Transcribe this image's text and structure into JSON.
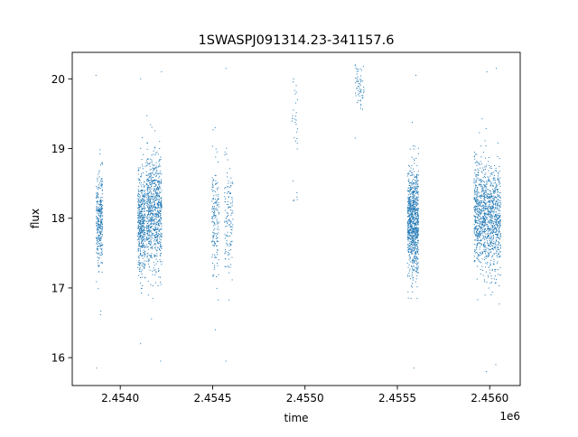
{
  "chart_data": {
    "type": "scatter",
    "title": "1SWASPJ091314.23-341157.6",
    "xlabel": "time",
    "ylabel": "flux",
    "x_offset_label": "1e6",
    "x_ticks": [
      "2.4540",
      "2.4545",
      "2.4550",
      "2.4555",
      "2.4560"
    ],
    "x_tick_values": [
      2454000,
      2454500,
      2455000,
      2455500,
      2456000
    ],
    "y_ticks": [
      "16",
      "17",
      "18",
      "19",
      "20"
    ],
    "y_tick_values": [
      16,
      17,
      18,
      19,
      20
    ],
    "xlim": [
      2453740,
      2456165
    ],
    "ylim": [
      15.6,
      20.38
    ],
    "grid": false,
    "legend": "none",
    "marker_color": "#1f77b4",
    "series": [
      {
        "clusters": [
          {
            "x_range": [
              2453870,
              2453905
            ],
            "center": 18.0,
            "spread": 0.33,
            "points": 320,
            "outlier_low": 15.85,
            "outlier_high": 20.05
          },
          {
            "x_range": [
              2454095,
              2454135
            ],
            "center": 17.95,
            "spread": 0.38,
            "points": 450,
            "outlier_low": 16.2,
            "outlier_high": 20.0
          },
          {
            "x_range": [
              2454140,
              2454225
            ],
            "center": 18.1,
            "spread": 0.4,
            "points": 800,
            "outlier_low": 15.95,
            "outlier_high": 20.1
          },
          {
            "x_range": [
              2454495,
              2454535
            ],
            "center": 18.05,
            "spread": 0.38,
            "points": 160,
            "outlier_low": 16.4,
            "outlier_high": 19.3
          },
          {
            "x_range": [
              2454565,
              2454610
            ],
            "center": 17.95,
            "spread": 0.42,
            "points": 130,
            "outlier_low": 15.95,
            "outlier_high": 20.15
          },
          {
            "x_range": [
              2454930,
              2454960
            ],
            "center": 19.2,
            "spread": 0.4,
            "points": 30,
            "outlier_low": 18.25,
            "outlier_high": 20.0
          },
          {
            "x_range": [
              2455270,
              2455320
            ],
            "center": 19.9,
            "spread": 0.16,
            "points": 60,
            "outlier_low": 19.15,
            "outlier_high": 20.2
          },
          {
            "x_range": [
              2455555,
              2455615
            ],
            "center": 17.95,
            "spread": 0.38,
            "points": 900,
            "outlier_low": 15.85,
            "outlier_high": 20.05
          },
          {
            "x_range": [
              2455915,
              2455985
            ],
            "center": 18.05,
            "spread": 0.38,
            "points": 600,
            "outlier_low": 15.8,
            "outlier_high": 20.1
          },
          {
            "x_range": [
              2455985,
              2456060
            ],
            "center": 17.95,
            "spread": 0.38,
            "points": 600,
            "outlier_low": 15.9,
            "outlier_high": 20.15
          }
        ]
      }
    ]
  }
}
